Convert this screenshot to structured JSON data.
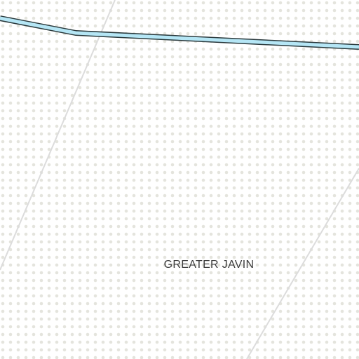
{
  "map": {
    "place_label": "GREATER JAVIN",
    "colors": {
      "background": "#ffffff",
      "dot_pattern": "#e4e4dd",
      "road_line": "#dcdcdc",
      "waterway_fill": "#b5e6f5",
      "waterway_outline": "#2b3a3d",
      "label_text": "#3d3d3d"
    }
  }
}
